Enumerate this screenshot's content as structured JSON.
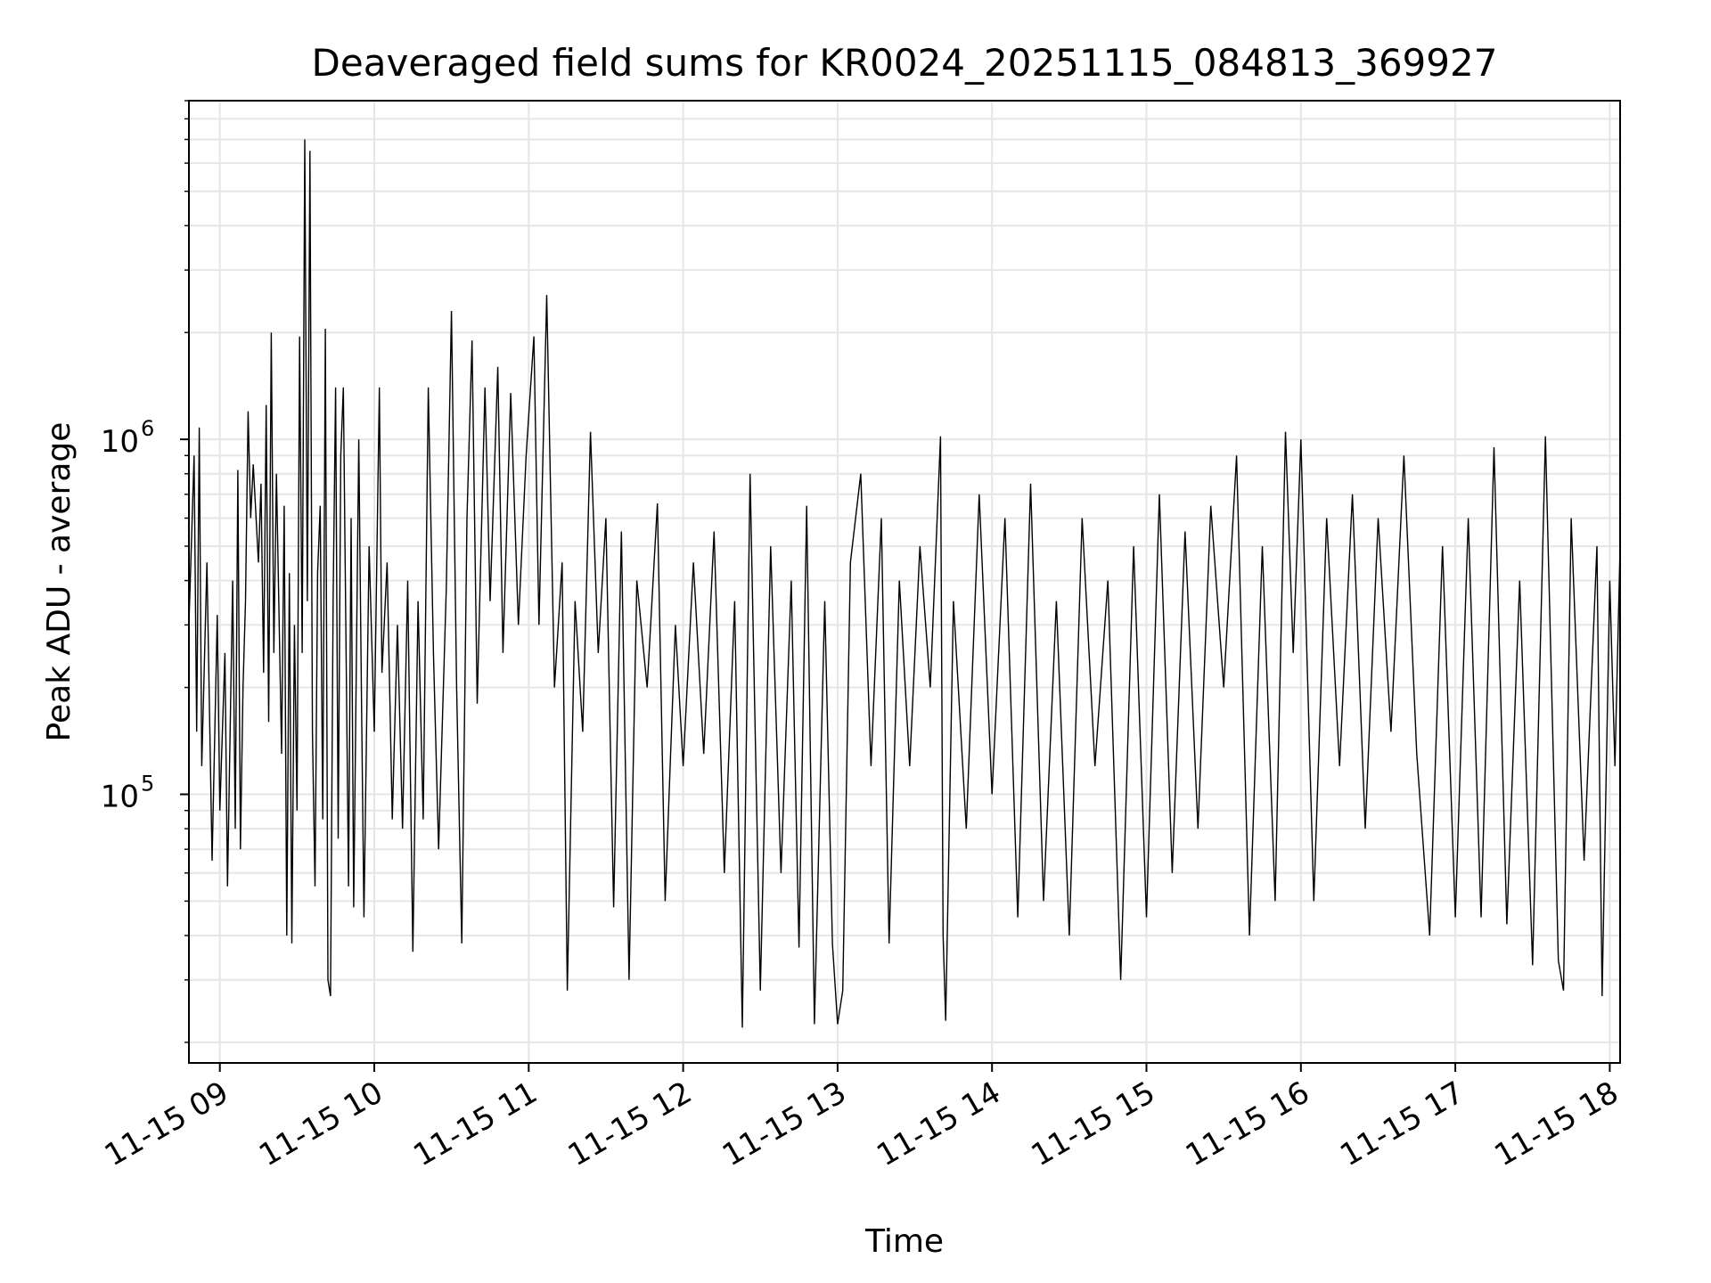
{
  "chart_data": {
    "type": "line",
    "title": "Deaveraged field sums for KR0024_20251115_084813_369927",
    "xlabel": "Time",
    "ylabel": "Peak ADU - average",
    "y_scale": "log",
    "ylim": [
      17500,
      9000000
    ],
    "xlim": [
      "2025-11-15 08:48",
      "2025-11-15 18:04"
    ],
    "grid": true,
    "legend": "none",
    "line_color": "#000000",
    "x_ticks": [
      "2025-11-15 09:00",
      "2025-11-15 10:00",
      "2025-11-15 11:00",
      "2025-11-15 12:00",
      "2025-11-15 13:00",
      "2025-11-15 14:00",
      "2025-11-15 15:00",
      "2025-11-15 16:00",
      "2025-11-15 17:00",
      "2025-11-15 18:00"
    ],
    "x_tick_labels": [
      "11-15 09",
      "11-15 10",
      "11-15 11",
      "11-15 12",
      "11-15 13",
      "11-15 14",
      "11-15 15",
      "11-15 16",
      "11-15 17",
      "11-15 18"
    ],
    "y_major_ticks": [
      {
        "value": 100000,
        "base": "10",
        "exp": "5"
      },
      {
        "value": 1000000,
        "base": "10",
        "exp": "6"
      }
    ],
    "series": [
      {
        "note_ignore": "",
        "points": [
          [
            "2025-11-15 08:48",
            300000
          ],
          [
            "2025-11-15 08:50",
            900000
          ],
          [
            "2025-11-15 08:51",
            150000
          ],
          [
            "2025-11-15 08:52",
            1080000
          ],
          [
            "2025-11-15 08:53",
            120000
          ],
          [
            "2025-11-15 08:55",
            450000
          ],
          [
            "2025-11-15 08:57",
            65000
          ],
          [
            "2025-11-15 08:59",
            320000
          ],
          [
            "2025-11-15 09:00",
            90000
          ],
          [
            "2025-11-15 09:02",
            250000
          ],
          [
            "2025-11-15 09:03",
            55000
          ],
          [
            "2025-11-15 09:05",
            400000
          ],
          [
            "2025-11-15 09:06",
            80000
          ],
          [
            "2025-11-15 09:07",
            820000
          ],
          [
            "2025-11-15 09:08",
            70000
          ],
          [
            "2025-11-15 09:09",
            200000
          ],
          [
            "2025-11-15 09:10",
            350000
          ],
          [
            "2025-11-15 09:11",
            1200000
          ],
          [
            "2025-11-15 09:12",
            600000
          ],
          [
            "2025-11-15 09:13",
            850000
          ],
          [
            "2025-11-15 09:15",
            450000
          ],
          [
            "2025-11-15 09:16",
            750000
          ],
          [
            "2025-11-15 09:17",
            220000
          ],
          [
            "2025-11-15 09:18",
            1250000
          ],
          [
            "2025-11-15 09:19",
            160000
          ],
          [
            "2025-11-15 09:20",
            2000000
          ],
          [
            "2025-11-15 09:21",
            250000
          ],
          [
            "2025-11-15 09:22",
            800000
          ],
          [
            "2025-11-15 09:24",
            130000
          ],
          [
            "2025-11-15 09:25",
            650000
          ],
          [
            "2025-11-15 09:26",
            40000
          ],
          [
            "2025-11-15 09:27",
            420000
          ],
          [
            "2025-11-15 09:28",
            38000
          ],
          [
            "2025-11-15 09:29",
            300000
          ],
          [
            "2025-11-15 09:30",
            90000
          ],
          [
            "2025-11-15 09:31",
            1950000
          ],
          [
            "2025-11-15 09:32",
            250000
          ],
          [
            "2025-11-15 09:33",
            7000000
          ],
          [
            "2025-11-15 09:34",
            350000
          ],
          [
            "2025-11-15 09:35",
            6500000
          ],
          [
            "2025-11-15 09:36",
            150000
          ],
          [
            "2025-11-15 09:37",
            55000
          ],
          [
            "2025-11-15 09:38",
            420000
          ],
          [
            "2025-11-15 09:39",
            650000
          ],
          [
            "2025-11-15 09:40",
            85000
          ],
          [
            "2025-11-15 09:41",
            2050000
          ],
          [
            "2025-11-15 09:42",
            30000
          ],
          [
            "2025-11-15 09:43",
            27000
          ],
          [
            "2025-11-15 09:44",
            350000
          ],
          [
            "2025-11-15 09:45",
            1400000
          ],
          [
            "2025-11-15 09:46",
            75000
          ],
          [
            "2025-11-15 09:47",
            900000
          ],
          [
            "2025-11-15 09:48",
            1400000
          ],
          [
            "2025-11-15 09:50",
            55000
          ],
          [
            "2025-11-15 09:51",
            600000
          ],
          [
            "2025-11-15 09:52",
            48000
          ],
          [
            "2025-11-15 09:54",
            1000000
          ],
          [
            "2025-11-15 09:55",
            200000
          ],
          [
            "2025-11-15 09:56",
            45000
          ],
          [
            "2025-11-15 09:58",
            500000
          ],
          [
            "2025-11-15 10:00",
            150000
          ],
          [
            "2025-11-15 10:02",
            1400000
          ],
          [
            "2025-11-15 10:03",
            220000
          ],
          [
            "2025-11-15 10:05",
            450000
          ],
          [
            "2025-11-15 10:07",
            85000
          ],
          [
            "2025-11-15 10:09",
            300000
          ],
          [
            "2025-11-15 10:11",
            80000
          ],
          [
            "2025-11-15 10:13",
            400000
          ],
          [
            "2025-11-15 10:15",
            36000
          ],
          [
            "2025-11-15 10:17",
            350000
          ],
          [
            "2025-11-15 10:19",
            85000
          ],
          [
            "2025-11-15 10:21",
            1400000
          ],
          [
            "2025-11-15 10:23",
            250000
          ],
          [
            "2025-11-15 10:25",
            70000
          ],
          [
            "2025-11-15 10:28",
            380000
          ],
          [
            "2025-11-15 10:30",
            2300000
          ],
          [
            "2025-11-15 10:32",
            200000
          ],
          [
            "2025-11-15 10:34",
            38000
          ],
          [
            "2025-11-15 10:36",
            600000
          ],
          [
            "2025-11-15 10:38",
            1900000
          ],
          [
            "2025-11-15 10:40",
            180000
          ],
          [
            "2025-11-15 10:43",
            1400000
          ],
          [
            "2025-11-15 10:45",
            350000
          ],
          [
            "2025-11-15 10:48",
            1600000
          ],
          [
            "2025-11-15 10:50",
            250000
          ],
          [
            "2025-11-15 10:53",
            1350000
          ],
          [
            "2025-11-15 10:56",
            300000
          ],
          [
            "2025-11-15 10:59",
            900000
          ],
          [
            "2025-11-15 11:02",
            1950000
          ],
          [
            "2025-11-15 11:04",
            300000
          ],
          [
            "2025-11-15 11:07",
            2550000
          ],
          [
            "2025-11-15 11:10",
            200000
          ],
          [
            "2025-11-15 11:13",
            450000
          ],
          [
            "2025-11-15 11:15",
            28000
          ],
          [
            "2025-11-15 11:18",
            350000
          ],
          [
            "2025-11-15 11:21",
            150000
          ],
          [
            "2025-11-15 11:24",
            1050000
          ],
          [
            "2025-11-15 11:27",
            250000
          ],
          [
            "2025-11-15 11:30",
            600000
          ],
          [
            "2025-11-15 11:33",
            48000
          ],
          [
            "2025-11-15 11:36",
            550000
          ],
          [
            "2025-11-15 11:39",
            30000
          ],
          [
            "2025-11-15 11:42",
            400000
          ],
          [
            "2025-11-15 11:46",
            200000
          ],
          [
            "2025-11-15 11:50",
            660000
          ],
          [
            "2025-11-15 11:53",
            50000
          ],
          [
            "2025-11-15 11:57",
            300000
          ],
          [
            "2025-11-15 12:00",
            120000
          ],
          [
            "2025-11-15 12:04",
            450000
          ],
          [
            "2025-11-15 12:08",
            130000
          ],
          [
            "2025-11-15 12:12",
            550000
          ],
          [
            "2025-11-15 12:16",
            60000
          ],
          [
            "2025-11-15 12:20",
            350000
          ],
          [
            "2025-11-15 12:23",
            22000
          ],
          [
            "2025-11-15 12:26",
            800000
          ],
          [
            "2025-11-15 12:30",
            28000
          ],
          [
            "2025-11-15 12:34",
            500000
          ],
          [
            "2025-11-15 12:38",
            60000
          ],
          [
            "2025-11-15 12:42",
            400000
          ],
          [
            "2025-11-15 12:45",
            37000
          ],
          [
            "2025-11-15 12:48",
            650000
          ],
          [
            "2025-11-15 12:51",
            22500
          ],
          [
            "2025-11-15 12:55",
            350000
          ],
          [
            "2025-11-15 12:58",
            38000
          ],
          [
            "2025-11-15 13:00",
            22500
          ],
          [
            "2025-11-15 13:02",
            28000
          ],
          [
            "2025-11-15 13:05",
            450000
          ],
          [
            "2025-11-15 13:09",
            800000
          ],
          [
            "2025-11-15 13:13",
            120000
          ],
          [
            "2025-11-15 13:17",
            600000
          ],
          [
            "2025-11-15 13:20",
            38000
          ],
          [
            "2025-11-15 13:24",
            400000
          ],
          [
            "2025-11-15 13:28",
            120000
          ],
          [
            "2025-11-15 13:32",
            500000
          ],
          [
            "2025-11-15 13:36",
            200000
          ],
          [
            "2025-11-15 13:40",
            1020000
          ],
          [
            "2025-11-15 13:41",
            40000
          ],
          [
            "2025-11-15 13:42",
            23000
          ],
          [
            "2025-11-15 13:45",
            350000
          ],
          [
            "2025-11-15 13:50",
            80000
          ],
          [
            "2025-11-15 13:55",
            700000
          ],
          [
            "2025-11-15 14:00",
            100000
          ],
          [
            "2025-11-15 14:05",
            600000
          ],
          [
            "2025-11-15 14:10",
            45000
          ],
          [
            "2025-11-15 14:15",
            750000
          ],
          [
            "2025-11-15 14:20",
            50000
          ],
          [
            "2025-11-15 14:25",
            350000
          ],
          [
            "2025-11-15 14:30",
            40000
          ],
          [
            "2025-11-15 14:35",
            600000
          ],
          [
            "2025-11-15 14:40",
            120000
          ],
          [
            "2025-11-15 14:45",
            400000
          ],
          [
            "2025-11-15 14:50",
            30000
          ],
          [
            "2025-11-15 14:55",
            500000
          ],
          [
            "2025-11-15 15:00",
            45000
          ],
          [
            "2025-11-15 15:05",
            700000
          ],
          [
            "2025-11-15 15:10",
            60000
          ],
          [
            "2025-11-15 15:15",
            550000
          ],
          [
            "2025-11-15 15:20",
            80000
          ],
          [
            "2025-11-15 15:25",
            650000
          ],
          [
            "2025-11-15 15:30",
            200000
          ],
          [
            "2025-11-15 15:35",
            900000
          ],
          [
            "2025-11-15 15:40",
            40000
          ],
          [
            "2025-11-15 15:45",
            500000
          ],
          [
            "2025-11-15 15:50",
            50000
          ],
          [
            "2025-11-15 15:54",
            1050000
          ],
          [
            "2025-11-15 15:57",
            250000
          ],
          [
            "2025-11-15 16:00",
            1000000
          ],
          [
            "2025-11-15 16:05",
            50000
          ],
          [
            "2025-11-15 16:10",
            600000
          ],
          [
            "2025-11-15 16:15",
            120000
          ],
          [
            "2025-11-15 16:20",
            700000
          ],
          [
            "2025-11-15 16:25",
            80000
          ],
          [
            "2025-11-15 16:30",
            600000
          ],
          [
            "2025-11-15 16:35",
            150000
          ],
          [
            "2025-11-15 16:40",
            900000
          ],
          [
            "2025-11-15 16:45",
            130000
          ],
          [
            "2025-11-15 16:50",
            40000
          ],
          [
            "2025-11-15 16:55",
            500000
          ],
          [
            "2025-11-15 17:00",
            45000
          ],
          [
            "2025-11-15 17:05",
            600000
          ],
          [
            "2025-11-15 17:10",
            45000
          ],
          [
            "2025-11-15 17:15",
            950000
          ],
          [
            "2025-11-15 17:20",
            43000
          ],
          [
            "2025-11-15 17:25",
            400000
          ],
          [
            "2025-11-15 17:30",
            33000
          ],
          [
            "2025-11-15 17:35",
            1020000
          ],
          [
            "2025-11-15 17:40",
            34000
          ],
          [
            "2025-11-15 17:42",
            28000
          ],
          [
            "2025-11-15 17:45",
            600000
          ],
          [
            "2025-11-15 17:50",
            65000
          ],
          [
            "2025-11-15 17:55",
            500000
          ],
          [
            "2025-11-15 17:57",
            27000
          ],
          [
            "2025-11-15 18:00",
            400000
          ],
          [
            "2025-11-15 18:02",
            120000
          ],
          [
            "2025-11-15 18:04",
            500000
          ]
        ]
      }
    ]
  }
}
